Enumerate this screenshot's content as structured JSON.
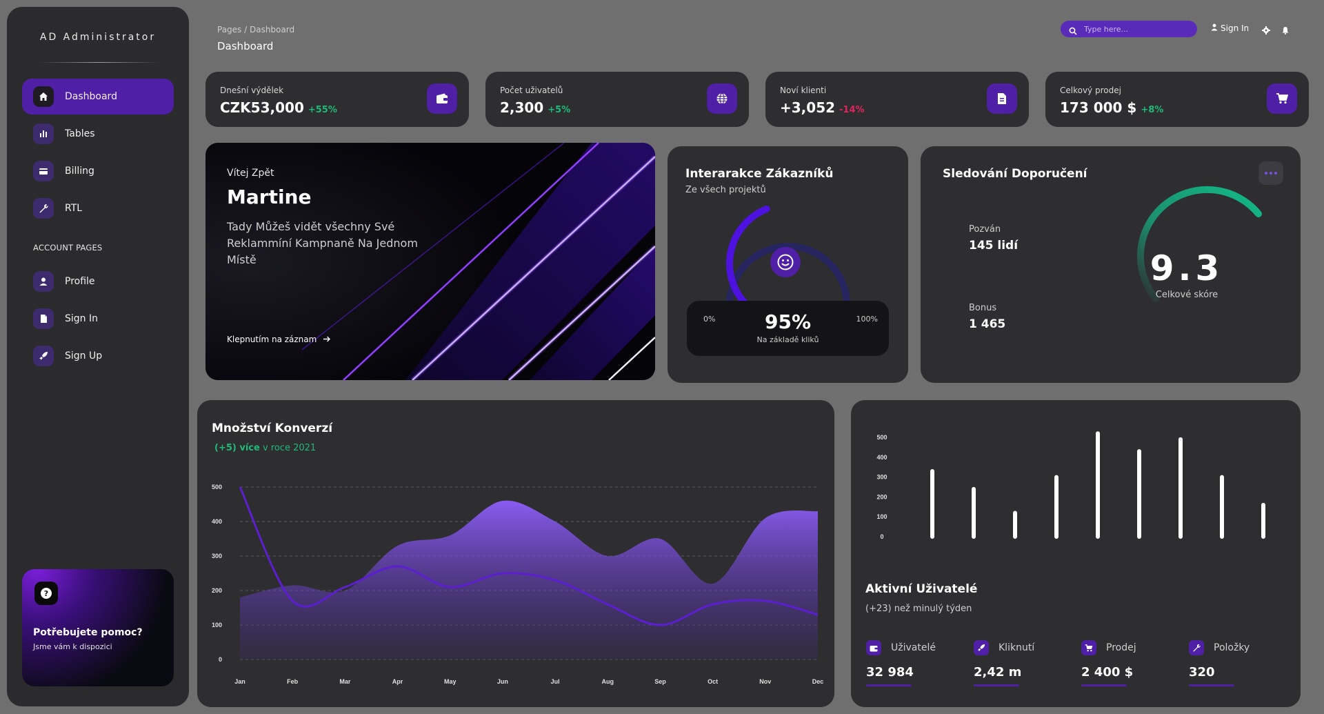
{
  "sidebar": {
    "brand": "AD Administrator",
    "items": [
      {
        "label": "Dashboard",
        "icon": "home-icon"
      },
      {
        "label": "Tables",
        "icon": "stats-icon"
      },
      {
        "label": "Billing",
        "icon": "credit-card-icon"
      },
      {
        "label": "RTL",
        "icon": "wrench-icon"
      }
    ],
    "account_heading": "ACCOUNT PAGES",
    "account_items": [
      {
        "label": "Profile",
        "icon": "person-icon"
      },
      {
        "label": "Sign In",
        "icon": "document-icon"
      },
      {
        "label": "Sign Up",
        "icon": "rocket-icon"
      }
    ],
    "help": {
      "title": "Potřebujete pomoc?",
      "subtitle": "Jsme vám k dispozici"
    }
  },
  "header": {
    "breadcrumb": "Pages / Dashboard",
    "title": "Dashboard",
    "search_placeholder": "Type here...",
    "signin_label": "Sign In"
  },
  "stats": [
    {
      "label": "Dnešní výdělek",
      "value": "CZK53,000",
      "change": "+55%",
      "positive": true,
      "icon": "wallet-icon"
    },
    {
      "label": "Počet uživatelů",
      "value": "2,300",
      "change": "+5%",
      "positive": true,
      "icon": "globe-icon"
    },
    {
      "label": "Noví klienti",
      "value": "+3,052",
      "change": "-14%",
      "positive": false,
      "icon": "document-icon"
    },
    {
      "label": "Celkový prodej",
      "value": "173 000 $",
      "change": "+8%",
      "positive": true,
      "icon": "cart-icon"
    }
  ],
  "welcome": {
    "greeting": "Vítej Zpět",
    "name": "Martine",
    "text": "Tady Můžeš vidět všechny Své Reklammíní Kampnaně Na Jednom Místě",
    "link": "Klepnutím na záznam"
  },
  "satisfaction": {
    "title": "Interarakce Zákazníků",
    "subtitle": "Ze všech projektů",
    "min": "0%",
    "max": "100%",
    "percent": "95%",
    "percent_value": 95,
    "basis": "Na základě kliků"
  },
  "referral": {
    "title": "Sledování Doporučení",
    "invited_label": "Pozván",
    "invited_value": "145 lidí",
    "bonus_label": "Bonus",
    "bonus_value": "1 465",
    "score": "9.3",
    "score_label": "Celkové skóre"
  },
  "sales": {
    "title": "Množství Konverzí",
    "change": "(+5) více",
    "change_rest": "v roce 2021"
  },
  "active_users": {
    "title": "Aktivní Uživatelé",
    "subtitle": "(+23) než minulý týden",
    "metrics": [
      {
        "label": "Uživatelé",
        "value": "32 984",
        "icon": "wallet-icon"
      },
      {
        "label": "Kliknutí",
        "value": "2,42 m",
        "icon": "rocket-icon"
      },
      {
        "label": "Prodej",
        "value": "2 400 $",
        "icon": "cart-icon"
      },
      {
        "label": "Položky",
        "value": "320",
        "icon": "wrench-icon"
      }
    ]
  },
  "colors": {
    "accent": "#4f1fa6",
    "positive": "#1fb97a",
    "negative": "#e0245e",
    "gauge": "#13b989"
  },
  "chart_data": [
    {
      "type": "area",
      "categories": [
        "Jan",
        "Feb",
        "Mar",
        "Apr",
        "May",
        "Jun",
        "Jul",
        "Aug",
        "Sep",
        "Oct",
        "Nov",
        "Dec"
      ],
      "ylim": [
        0,
        500
      ],
      "yticks": [
        0,
        100,
        200,
        300,
        400,
        500
      ],
      "series": [
        {
          "values": [
            180,
            215,
            200,
            330,
            360,
            460,
            400,
            300,
            350,
            220,
            410,
            430
          ]
        },
        {
          "values": [
            500,
            170,
            210,
            270,
            210,
            250,
            230,
            160,
            100,
            160,
            170,
            130
          ]
        }
      ]
    },
    {
      "type": "bar",
      "ylim": [
        0,
        500
      ],
      "yticks": [
        0,
        100,
        200,
        300,
        400,
        500
      ],
      "values": [
        330,
        240,
        120,
        300,
        520,
        430,
        490,
        300,
        160
      ]
    }
  ]
}
